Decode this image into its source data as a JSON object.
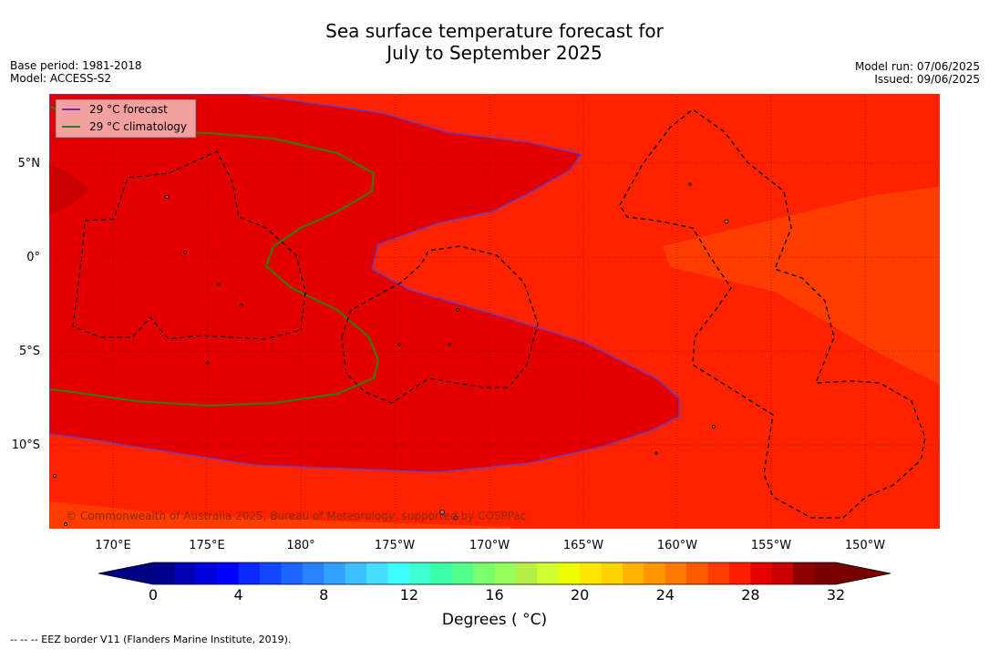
{
  "title_line1": "Sea surface temperature forecast for",
  "title_line2": "July to September 2025",
  "base_period": "Base period: 1981-2018",
  "model": "Model: ACCESS-S2",
  "model_run": "Model run: 07/06/2025",
  "issued": "Issued: 09/06/2025",
  "legend": {
    "forecast": "29 °C  forecast",
    "climatology": "29 °C  climatology",
    "forecast_color": "#7030a0",
    "climatology_color": "#2e7d0f"
  },
  "copyright": "© Commonwealth of Australia 2025, Bureau of Meteorology, supported by COSPPac",
  "lat_labels": [
    "5°N",
    "0°",
    "5°S",
    "10°S"
  ],
  "lon_labels": [
    "170°E",
    "175°E",
    "180°",
    "175°W",
    "170°W",
    "165°W",
    "160°W",
    "155°W",
    "150°W"
  ],
  "colorbar": {
    "ticks": [
      "0",
      "4",
      "8",
      "12",
      "16",
      "20",
      "24",
      "28",
      "32"
    ],
    "label": "Degrees ( °C)",
    "colors": [
      "#00008c",
      "#0000b4",
      "#0000dc",
      "#0000ff",
      "#0a28ff",
      "#1446ff",
      "#1e64ff",
      "#2882ff",
      "#32a0ff",
      "#3cbeff",
      "#46dcff",
      "#3cffff",
      "#3cffd2",
      "#3cffaa",
      "#50ff8c",
      "#78ff6e",
      "#96ff5a",
      "#b4f046",
      "#d2ff32",
      "#f0ff00",
      "#ffe600",
      "#ffd200",
      "#ffb400",
      "#ff9600",
      "#ff7800",
      "#ff5a00",
      "#ff3c00",
      "#ff1e00",
      "#e60000",
      "#c80000",
      "#8c0000",
      "#780000"
    ],
    "under_color": "#000082",
    "over_color": "#780000"
  },
  "footer": "--  --  -- EEZ border V11 (Flanders Marine Institute, 2019)."
}
